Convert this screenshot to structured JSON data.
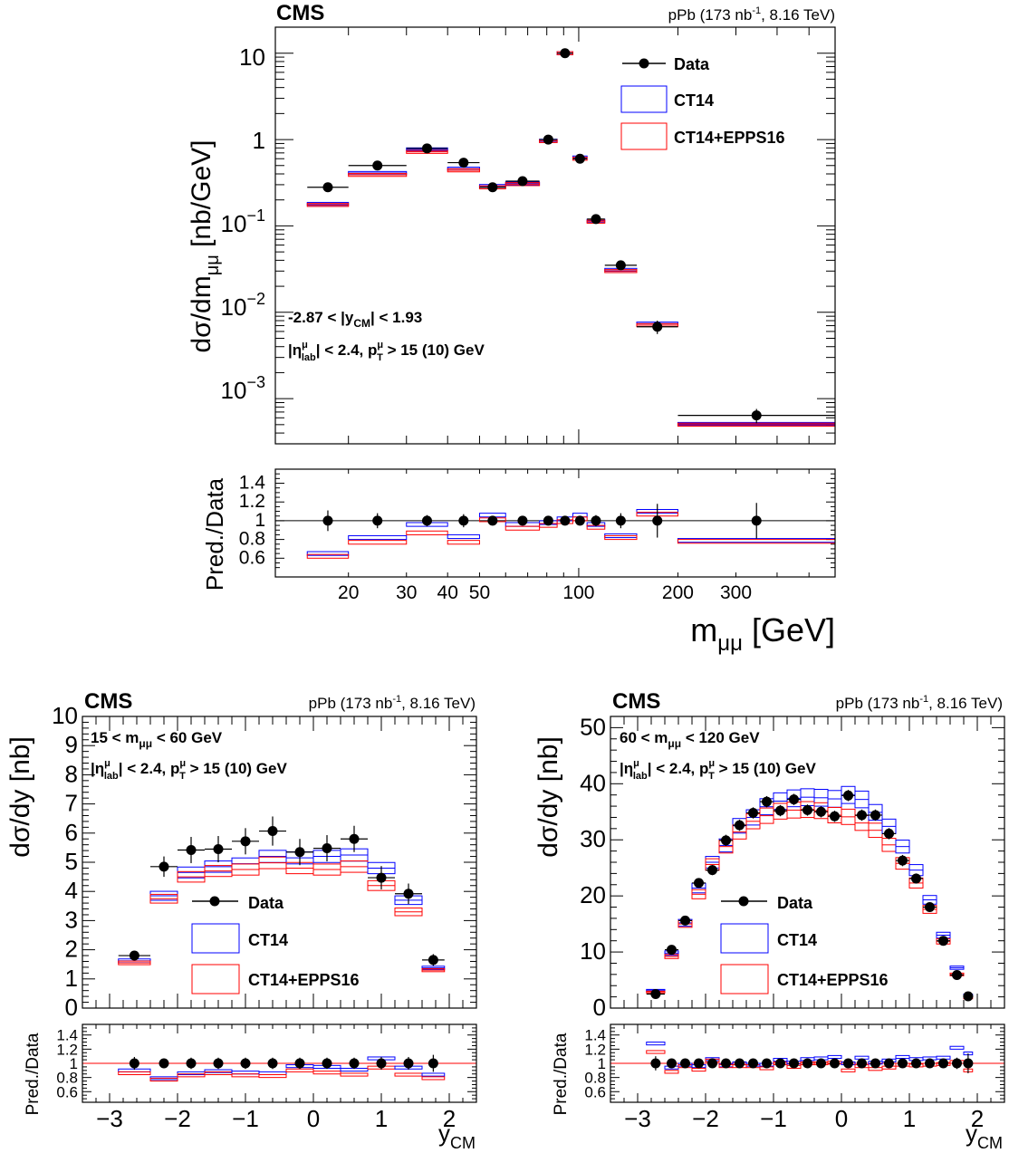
{
  "labels": {
    "experiment": "CMS",
    "lumi_prefix": "pPb (173 nb",
    "lumi_exp": "-1",
    "lumi_suffix": ", 8.16 TeV)",
    "ratio_ylabel": "Pred./Data",
    "legend": [
      "Data",
      "CT14",
      "CT14+EPPS16"
    ]
  },
  "annotations": {
    "top_ycm": "-2.87 < |y",
    "top_ycm_sub": "CM",
    "top_ycm_rest": "| < 1.93",
    "eta_a": "|η",
    "eta_sup": "μ",
    "eta_sub": "lab",
    "eta_b": "| < 2.4, p",
    "pt_sup": "μ",
    "pt_sub": "T",
    "eta_c": " > 15 (10) GeV",
    "low_mass": "15 < m",
    "low_mass_rest": " < 60 GeV",
    "z_mass": "60 < m",
    "z_mass_rest": " < 120 GeV",
    "mu_sub": "μμ"
  },
  "colors": {
    "data": "#000000",
    "ct14": "#0000ff",
    "epps16": "#ff0000",
    "ref_line": "#ff0000"
  },
  "chart_data": [
    {
      "type": "scatter",
      "title": "",
      "xlabel": "mμμ [GeV]",
      "ylabel": "dσ/dmμμ [nb/GeV]",
      "xscale": "log",
      "yscale": "log",
      "xlim": [
        12,
        600
      ],
      "ylim": [
        0.0003,
        20
      ],
      "legend_position": "top-right",
      "xtick_labels": [
        "20",
        "30",
        "40",
        "50",
        "100",
        "200",
        "300"
      ],
      "ytick_labels": [
        "10",
        "1",
        "10^-1",
        "10^-2",
        "10^-3"
      ],
      "bins": [
        [
          15,
          20
        ],
        [
          20,
          30
        ],
        [
          30,
          40
        ],
        [
          40,
          50
        ],
        [
          50,
          60
        ],
        [
          60,
          76
        ],
        [
          76,
          86
        ],
        [
          86,
          96
        ],
        [
          96,
          106
        ],
        [
          106,
          120
        ],
        [
          120,
          150
        ],
        [
          150,
          200
        ],
        [
          200,
          600
        ]
      ],
      "data": [
        0.28,
        0.5,
        0.79,
        0.54,
        0.28,
        0.33,
        1.0,
        10.0,
        0.6,
        0.12,
        0.035,
        0.0068,
        0.00064
      ],
      "data_err": [
        0.03,
        0.04,
        0.05,
        0.04,
        0.02,
        0.02,
        0.05,
        0.4,
        0.04,
        0.008,
        0.003,
        0.0012,
        0.00012
      ],
      "ct14": [
        0.18,
        0.41,
        0.77,
        0.46,
        0.29,
        0.31,
        0.97,
        10.0,
        0.62,
        0.115,
        0.031,
        0.0074,
        0.00051
      ],
      "epps16": [
        0.175,
        0.39,
        0.72,
        0.44,
        0.28,
        0.305,
        0.96,
        10.0,
        0.6,
        0.112,
        0.03,
        0.0071,
        0.0005
      ],
      "ratio": {
        "ylabel": "Pred./Data",
        "ylim": [
          0.4,
          1.55
        ],
        "ytick_labels": [
          "0.6",
          "0.8",
          "1",
          "1.2",
          "1.4"
        ],
        "data_err": [
          0.11,
          0.08,
          0.06,
          0.07,
          0.05,
          0.05,
          0.03,
          0.04,
          0.05,
          0.06,
          0.08,
          0.18,
          0.19
        ],
        "ct14": [
          0.65,
          0.82,
          0.96,
          0.83,
          1.06,
          0.96,
          0.98,
          1.02,
          1.06,
          0.96,
          0.84,
          1.1,
          0.79
        ],
        "epps16": [
          0.62,
          0.77,
          0.87,
          0.77,
          1.01,
          0.92,
          0.95,
          0.99,
          1.02,
          0.93,
          0.82,
          1.07,
          0.78
        ]
      }
    },
    {
      "type": "scatter",
      "title": "",
      "xlabel": "yCM",
      "ylabel": "dσ/dy [nb]",
      "xlim": [
        -3.4,
        2.4
      ],
      "ylim": [
        0,
        10
      ],
      "legend_position": "bottom-center",
      "xtick_labels": [
        "−3",
        "−2",
        "−1",
        "0",
        "1",
        "2"
      ],
      "ytick_labels": [
        "0",
        "1",
        "2",
        "3",
        "4",
        "5",
        "6",
        "7",
        "8",
        "9",
        "10"
      ],
      "bins": [
        [
          -2.87,
          -2.4
        ],
        [
          -2.4,
          -2.0
        ],
        [
          -2.0,
          -1.6
        ],
        [
          -1.6,
          -1.2
        ],
        [
          -1.2,
          -0.8
        ],
        [
          -0.8,
          -0.4
        ],
        [
          -0.4,
          0.0
        ],
        [
          0.0,
          0.4
        ],
        [
          0.4,
          0.8
        ],
        [
          0.8,
          1.2
        ],
        [
          1.2,
          1.6
        ],
        [
          1.6,
          1.93
        ]
      ],
      "data": [
        1.8,
        4.85,
        5.42,
        5.45,
        5.72,
        6.07,
        5.35,
        5.48,
        5.8,
        4.47,
        3.92,
        1.65
      ],
      "data_err": [
        0.15,
        0.35,
        0.45,
        0.45,
        0.45,
        0.5,
        0.45,
        0.45,
        0.45,
        0.4,
        0.35,
        0.2
      ],
      "ct14": [
        1.62,
        3.85,
        4.65,
        4.85,
        4.95,
        5.2,
        5.15,
        5.2,
        5.25,
        4.8,
        3.7,
        1.38
      ],
      "epps16": [
        1.55,
        3.75,
        4.5,
        4.7,
        4.75,
        4.98,
        4.8,
        4.75,
        4.85,
        4.2,
        3.3,
        1.3
      ],
      "ratio": {
        "ylabel": "Pred./Data",
        "ylim": [
          0.45,
          1.55
        ],
        "ytick_labels": [
          "0.6",
          "0.8",
          "1",
          "1.2",
          "1.4"
        ],
        "data_err": [
          0.09,
          0.07,
          0.08,
          0.08,
          0.08,
          0.08,
          0.08,
          0.08,
          0.08,
          0.09,
          0.09,
          0.12
        ],
        "ct14": [
          0.9,
          0.79,
          0.86,
          0.89,
          0.87,
          0.86,
          0.96,
          0.95,
          0.91,
          1.07,
          0.94,
          0.84
        ],
        "epps16": [
          0.86,
          0.77,
          0.83,
          0.86,
          0.83,
          0.82,
          0.9,
          0.87,
          0.84,
          0.94,
          0.84,
          0.79
        ]
      }
    },
    {
      "type": "scatter",
      "title": "",
      "xlabel": "yCM",
      "ylabel": "dσ/dy [nb]",
      "xlim": [
        -3.4,
        2.4
      ],
      "ylim": [
        0,
        52
      ],
      "legend_position": "bottom-center",
      "xtick_labels": [
        "−3",
        "−2",
        "−1",
        "0",
        "1",
        "2"
      ],
      "ytick_labels": [
        "0",
        "10",
        "20",
        "30",
        "40",
        "50"
      ],
      "bins": [
        [
          -2.87,
          -2.6
        ],
        [
          -2.6,
          -2.4
        ],
        [
          -2.4,
          -2.2
        ],
        [
          -2.2,
          -2.0
        ],
        [
          -2.0,
          -1.8
        ],
        [
          -1.8,
          -1.6
        ],
        [
          -1.6,
          -1.4
        ],
        [
          -1.4,
          -1.2
        ],
        [
          -1.2,
          -1.0
        ],
        [
          -1.0,
          -0.8
        ],
        [
          -0.8,
          -0.6
        ],
        [
          -0.6,
          -0.4
        ],
        [
          -0.4,
          -0.2
        ],
        [
          -0.2,
          0.0
        ],
        [
          0.0,
          0.2
        ],
        [
          0.2,
          0.4
        ],
        [
          0.4,
          0.6
        ],
        [
          0.6,
          0.8
        ],
        [
          0.8,
          1.0
        ],
        [
          1.0,
          1.2
        ],
        [
          1.2,
          1.4
        ],
        [
          1.4,
          1.6
        ],
        [
          1.6,
          1.8
        ],
        [
          1.8,
          1.93
        ]
      ],
      "data": [
        2.5,
        10.4,
        15.6,
        22.3,
        24.6,
        29.9,
        32.6,
        34.8,
        36.8,
        35.2,
        37.2,
        35.3,
        35.0,
        34.2,
        37.9,
        34.4,
        34.4,
        31.1,
        26.3,
        23.1,
        18.0,
        12.0,
        5.9,
        2.1
      ],
      "data_err": [
        0.3,
        0.6,
        0.6,
        0.8,
        0.9,
        1.0,
        1.0,
        1.0,
        1.0,
        1.0,
        1.0,
        1.0,
        1.0,
        1.0,
        1.0,
        1.0,
        1.0,
        1.0,
        1.0,
        0.9,
        0.8,
        0.7,
        0.5,
        0.3
      ],
      "ct14": [
        3.2,
        9.8,
        15.2,
        21.4,
        26.0,
        29.0,
        32.5,
        34.0,
        35.9,
        36.9,
        37.4,
        37.6,
        37.5,
        37.3,
        38.0,
        37.2,
        34.9,
        32.4,
        28.8,
        24.6,
        19.3,
        13.0,
        7.2,
        2.4
      ],
      "epps16": [
        2.9,
        9.2,
        15.0,
        20.3,
        25.6,
        28.8,
        31.4,
        33.3,
        34.3,
        35.1,
        35.3,
        35.4,
        35.2,
        34.4,
        34.1,
        33.0,
        31.7,
        29.1,
        25.8,
        22.3,
        17.6,
        11.9,
        6.0,
        1.9
      ],
      "ratio": {
        "ylabel": "Pred./Data",
        "ylim": [
          0.45,
          1.55
        ],
        "ytick_labels": [
          "0.6",
          "0.8",
          "1",
          "1.2",
          "1.4"
        ],
        "data_err": [
          0.1,
          0.06,
          0.04,
          0.04,
          0.04,
          0.03,
          0.03,
          0.03,
          0.03,
          0.03,
          0.03,
          0.03,
          0.03,
          0.03,
          0.03,
          0.03,
          0.03,
          0.03,
          0.04,
          0.04,
          0.05,
          0.06,
          0.08,
          0.14
        ],
        "ct14": [
          1.28,
          0.94,
          0.98,
          0.96,
          1.06,
          0.97,
          1.0,
          0.98,
          0.98,
          1.05,
          1.01,
          1.06,
          1.07,
          1.09,
          1.0,
          1.08,
          1.01,
          1.04,
          1.09,
          1.06,
          1.07,
          1.08,
          1.22,
          1.14
        ],
        "epps16": [
          1.16,
          0.88,
          0.96,
          0.91,
          1.04,
          0.96,
          0.96,
          0.96,
          0.93,
          1.0,
          0.95,
          1.0,
          1.0,
          1.01,
          0.9,
          0.96,
          0.92,
          0.94,
          0.98,
          0.97,
          0.98,
          0.99,
          1.02,
          0.9
        ]
      }
    }
  ]
}
